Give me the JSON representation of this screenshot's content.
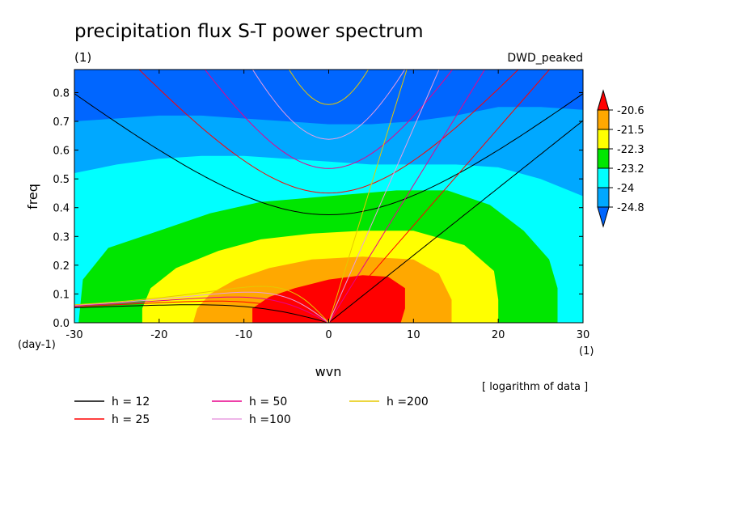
{
  "chart_data": {
    "type": "heatmap",
    "title": "precipitation flux S-T power spectrum",
    "y_units": "(1)",
    "dataset_label": "DWD_peaked",
    "xlabel": "wvn",
    "ylabel": "freq",
    "x_units_left": "(day-1)",
    "x_units_right": "(1)",
    "note": "[ logarithm of data ]",
    "xlim": [
      -30,
      30
    ],
    "ylim": [
      0,
      0.88
    ],
    "x_ticks": [
      -30,
      -20,
      -10,
      0,
      10,
      20,
      30
    ],
    "x_tick_labels": [
      "-30",
      "-20",
      "-10",
      "0",
      "10",
      "20",
      "30"
    ],
    "y_ticks": [
      0,
      0.1,
      0.2,
      0.3,
      0.4,
      0.5,
      0.6,
      0.7,
      0.8
    ],
    "y_tick_labels": [
      "0.0",
      "0.1",
      "0.2",
      "0.3",
      "0.4",
      "0.5",
      "0.6",
      "0.7",
      "0.8"
    ],
    "colorbar": {
      "levels": [
        -24.8,
        -24,
        -23.2,
        -22.3,
        -21.5,
        -20.6
      ],
      "level_labels": [
        "-24.8",
        "-24",
        "-23.2",
        "-22.3",
        "-21.5",
        "-20.6"
      ],
      "colors": [
        "#0066ff",
        "#00a8ff",
        "#00ffff",
        "#00e600",
        "#ffff00",
        "#ffa800",
        "#ff0000"
      ]
    },
    "filled_regions": [
      {
        "level": "< -24.8",
        "color": "#0066ff",
        "boundary": []
      },
      {
        "level": "-24.8",
        "color": "#00a8ff",
        "boundary": [
          [
            -30,
            0.7
          ],
          [
            -25,
            0.71
          ],
          [
            -20,
            0.72
          ],
          [
            -15,
            0.72
          ],
          [
            -10,
            0.71
          ],
          [
            -5,
            0.7
          ],
          [
            0,
            0.69
          ],
          [
            5,
            0.69
          ],
          [
            10,
            0.7
          ],
          [
            15,
            0.72
          ],
          [
            20,
            0.75
          ],
          [
            25,
            0.75
          ],
          [
            30,
            0.74
          ]
        ]
      },
      {
        "level": "-24",
        "color": "#00ffff",
        "boundary": [
          [
            -30,
            0.52
          ],
          [
            -25,
            0.55
          ],
          [
            -20,
            0.57
          ],
          [
            -15,
            0.58
          ],
          [
            -10,
            0.58
          ],
          [
            -5,
            0.57
          ],
          [
            0,
            0.56
          ],
          [
            5,
            0.55
          ],
          [
            10,
            0.55
          ],
          [
            15,
            0.55
          ],
          [
            20,
            0.54
          ],
          [
            25,
            0.5
          ],
          [
            30,
            0.44
          ]
        ]
      },
      {
        "level": "-23.2",
        "color": "#00e600",
        "boundary": [
          [
            -29.5,
            0
          ],
          [
            -29,
            0.15
          ],
          [
            -26,
            0.26
          ],
          [
            -20,
            0.32
          ],
          [
            -14,
            0.38
          ],
          [
            -8,
            0.42
          ],
          [
            0,
            0.44
          ],
          [
            8,
            0.46
          ],
          [
            14,
            0.46
          ],
          [
            19,
            0.41
          ],
          [
            23,
            0.32
          ],
          [
            26,
            0.22
          ],
          [
            27,
            0.12
          ],
          [
            27,
            0
          ]
        ]
      },
      {
        "level": "-22.3",
        "color": "#ffff00",
        "boundary": [
          [
            -22,
            0
          ],
          [
            -22,
            0.05
          ],
          [
            -21,
            0.12
          ],
          [
            -18,
            0.19
          ],
          [
            -13,
            0.25
          ],
          [
            -8,
            0.29
          ],
          [
            -2,
            0.31
          ],
          [
            4,
            0.32
          ],
          [
            10,
            0.32
          ],
          [
            16,
            0.27
          ],
          [
            19.5,
            0.18
          ],
          [
            20,
            0.08
          ],
          [
            20,
            0
          ]
        ]
      },
      {
        "level": "-21.5",
        "color": "#ffa800",
        "boundary": [
          [
            -16,
            0
          ],
          [
            -15.5,
            0.05
          ],
          [
            -14,
            0.1
          ],
          [
            -11,
            0.15
          ],
          [
            -7,
            0.19
          ],
          [
            -2,
            0.22
          ],
          [
            4,
            0.23
          ],
          [
            10,
            0.22
          ],
          [
            13,
            0.17
          ],
          [
            14.5,
            0.08
          ],
          [
            14.5,
            0
          ]
        ]
      },
      {
        "level": "-20.6",
        "color": "#ff0000",
        "boundary": [
          [
            -9,
            0
          ],
          [
            -9,
            0.05
          ],
          [
            -7,
            0.09
          ],
          [
            -4,
            0.12
          ],
          [
            0,
            0.15
          ],
          [
            4,
            0.165
          ],
          [
            7,
            0.16
          ],
          [
            9,
            0.12
          ],
          [
            9,
            0.05
          ],
          [
            8.5,
            0
          ]
        ]
      }
    ],
    "series": [
      {
        "name": "h = 12",
        "color": "#000000"
      },
      {
        "name": "h = 25",
        "color": "#ff0000"
      },
      {
        "name": "h = 50",
        "color": "#e8008c"
      },
      {
        "name": "h =100",
        "color": "#e89ee0"
      },
      {
        "name": "h =200",
        "color": "#e6c800"
      }
    ]
  }
}
